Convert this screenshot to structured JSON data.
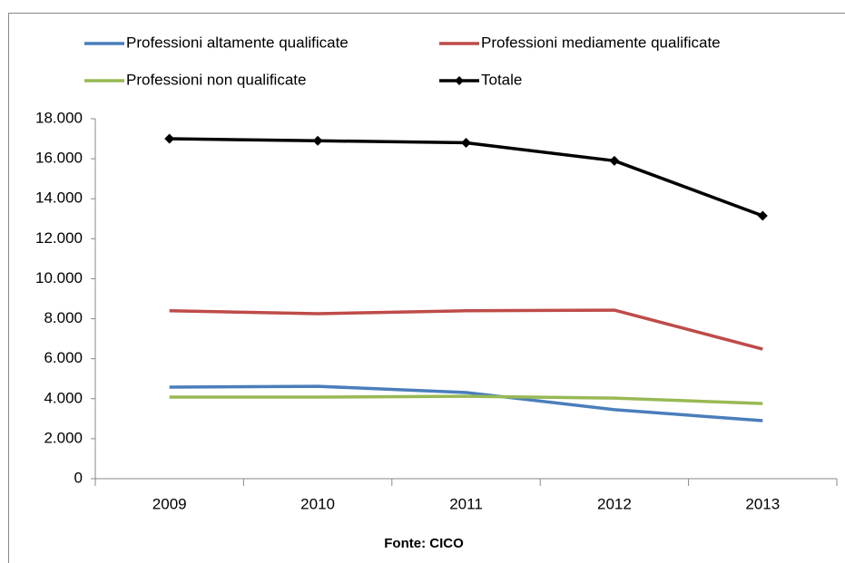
{
  "chart_data": {
    "type": "line",
    "categories": [
      "2009",
      "2010",
      "2011",
      "2012",
      "2013"
    ],
    "series": [
      {
        "name": "Professioni altamente qualificate",
        "color": "#4a7ebb",
        "values": [
          4580,
          4620,
          4310,
          3450,
          2900
        ]
      },
      {
        "name": "Professioni mediamente qualificate",
        "color": "#be4b48",
        "values": [
          8400,
          8250,
          8400,
          8430,
          6480
        ]
      },
      {
        "name": "Professioni non qualificate",
        "color": "#98b954",
        "values": [
          4080,
          4080,
          4120,
          4030,
          3760
        ]
      },
      {
        "name": "Totale",
        "color": "#000000",
        "marker": "diamond",
        "values": [
          17000,
          16900,
          16800,
          15900,
          13150
        ]
      }
    ],
    "ylim": [
      0,
      18000
    ],
    "yticks": [
      0,
      {
        "value": 2000,
        "label": "2.000"
      },
      {
        "value": 4000,
        "label": "4.000"
      },
      {
        "value": 6000,
        "label": "6.000"
      },
      {
        "value": 8000,
        "label": "8.000"
      },
      {
        "value": 10000,
        "label": "10.000"
      },
      {
        "value": 12000,
        "label": "12.000"
      },
      {
        "value": 14000,
        "label": "14.000"
      },
      {
        "value": 16000,
        "label": "16.000"
      },
      {
        "value": 18000,
        "label": "18.000"
      }
    ],
    "grid": false,
    "legend": "top",
    "source": "Fonte: CICO"
  }
}
